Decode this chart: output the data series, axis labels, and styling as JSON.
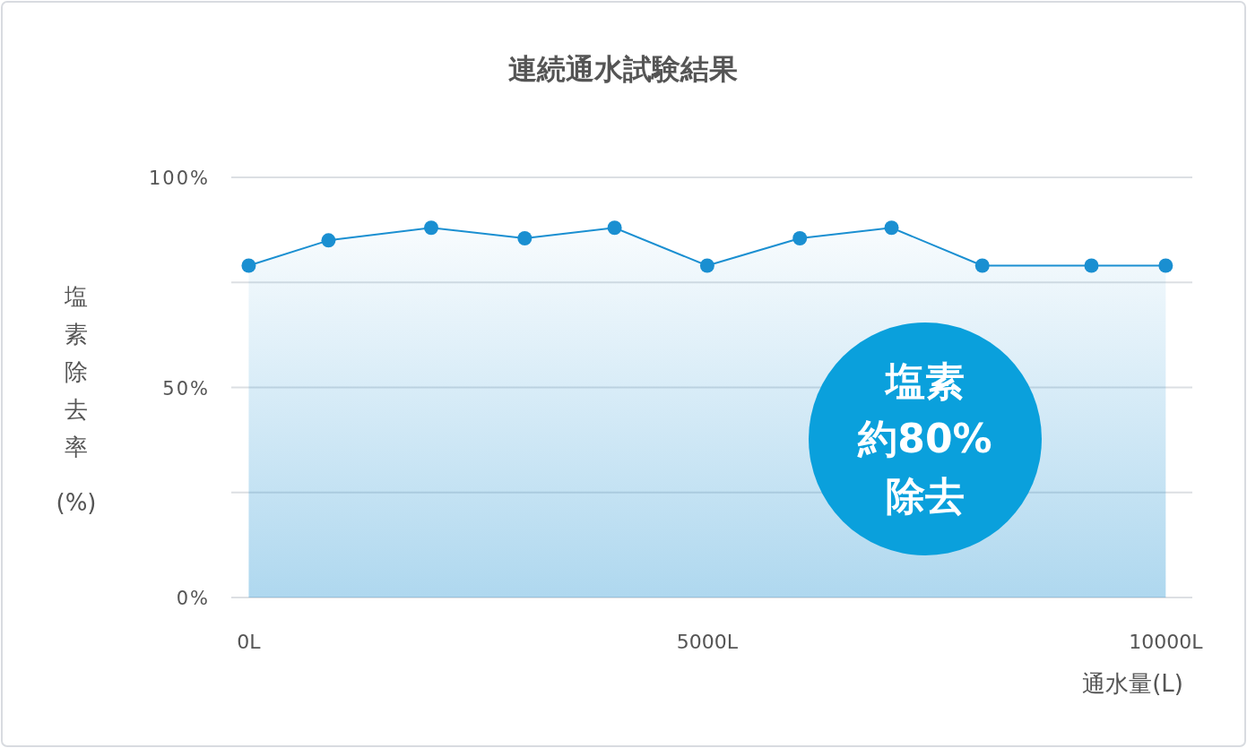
{
  "chart_data": {
    "type": "area",
    "title": "連続通水試験結果",
    "xlabel": "通水量(L)",
    "ylabel": "塩素除去率(%)",
    "x": [
      0,
      870,
      1990,
      3010,
      3990,
      5000,
      6010,
      7010,
      8000,
      9190,
      10000
    ],
    "series": [
      {
        "color": "#1a8fd1",
        "values": [
          79,
          85,
          88,
          85.5,
          88,
          79,
          85.5,
          88,
          79,
          79,
          79
        ]
      }
    ],
    "xlim": [
      -190,
      10290
    ],
    "xticks": [
      {
        "value": 0,
        "label": "0L"
      },
      {
        "value": 5000,
        "label": "5000L"
      },
      {
        "value": 10000,
        "label": "10000L"
      }
    ],
    "ylim": [
      0,
      100
    ],
    "yticks": [
      {
        "value": 0,
        "label": "0%"
      },
      {
        "value": 25,
        "label": null
      },
      {
        "value": 50,
        "label": "50%"
      },
      {
        "value": 75,
        "label": null
      },
      {
        "value": 100,
        "label": "100%"
      }
    ],
    "grid": "y",
    "marker": "circle",
    "line_style": "solid",
    "annotations": [
      "塩素",
      "約80%",
      "除去"
    ]
  }
}
